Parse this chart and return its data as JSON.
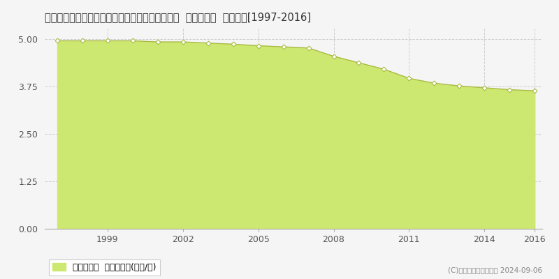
{
  "title": "栃木県塩谷郡塩谷町大字大宮字大塚２５４９番７  基準地価格  地価推移[1997-2016]",
  "years": [
    1997,
    1998,
    1999,
    2000,
    2001,
    2002,
    2003,
    2004,
    2005,
    2006,
    2007,
    2008,
    2009,
    2010,
    2011,
    2012,
    2013,
    2014,
    2015,
    2016
  ],
  "values": [
    4.96,
    4.96,
    4.96,
    4.96,
    4.93,
    4.93,
    4.9,
    4.87,
    4.83,
    4.8,
    4.77,
    4.55,
    4.38,
    4.21,
    3.97,
    3.84,
    3.77,
    3.72,
    3.67,
    3.64
  ],
  "fill_color": "#cde870",
  "fill_alpha": 1.0,
  "line_color": "#aabb44",
  "marker_color": "#ffffff",
  "marker_edge_color": "#aabb44",
  "marker_style": "D",
  "marker_size": 3.5,
  "ylim": [
    0,
    5.3
  ],
  "yticks": [
    0,
    1.25,
    2.5,
    3.75,
    5
  ],
  "xticks": [
    1999,
    2002,
    2005,
    2008,
    2011,
    2014,
    2016
  ],
  "grid_color": "#cccccc",
  "background_color": "#f5f5f5",
  "plot_bg_color": "#f5f5f5",
  "legend_label": "基準地価格  平均坪単価(万円/坪)",
  "copyright_text": "(C)土地価格ドットコム 2024-09-06",
  "title_fontsize": 10.5,
  "label_fontsize": 9
}
